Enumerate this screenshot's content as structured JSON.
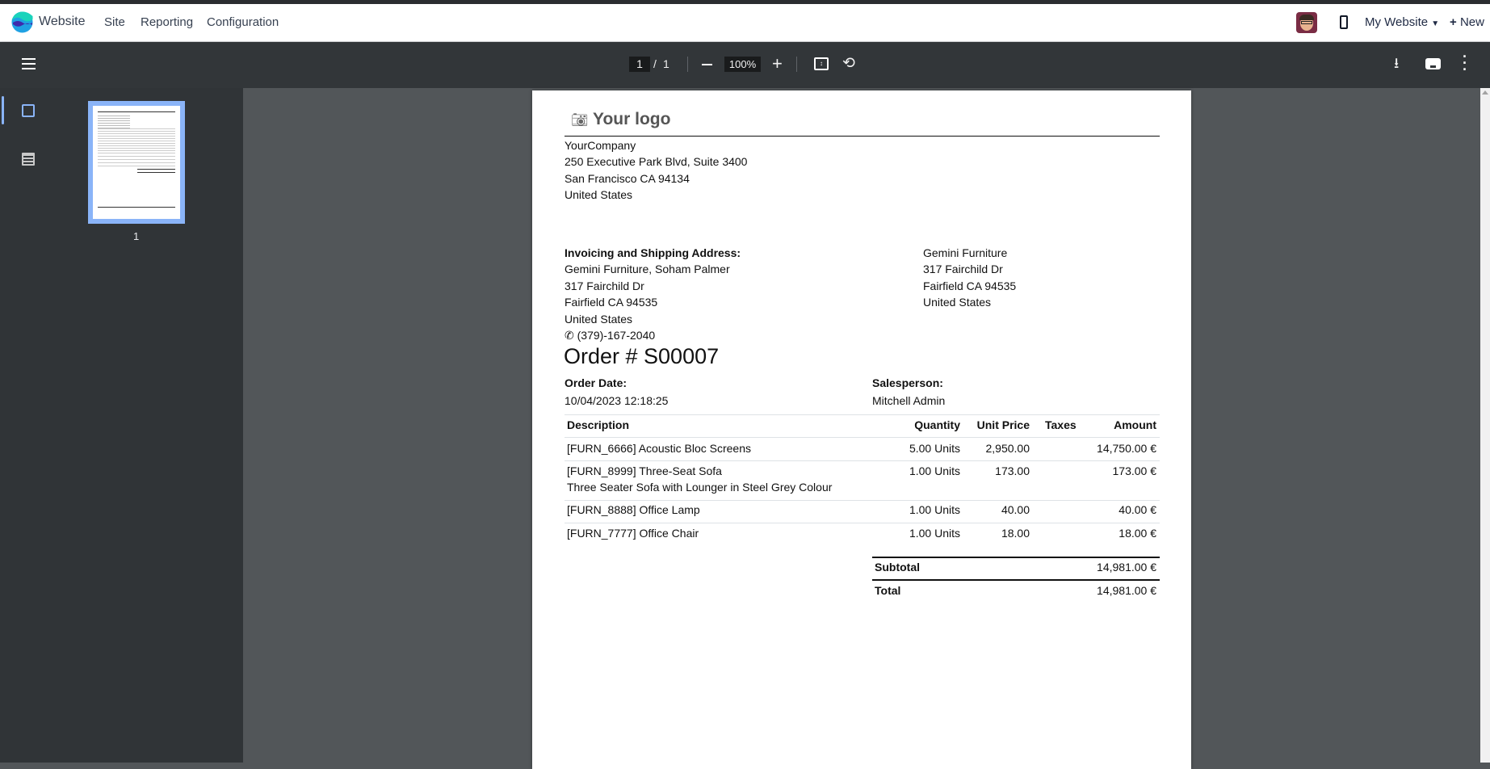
{
  "navbar": {
    "app_name": "Website",
    "menu": [
      "Site",
      "Reporting",
      "Configuration"
    ],
    "website_selector": "My Website",
    "new_label": "New",
    "logo_colors": [
      "#1ad3bb",
      "#3f2aab",
      "#1fa1e3"
    ]
  },
  "toolbar": {
    "current_page": "1",
    "page_separator": "/",
    "total_pages": "1",
    "zoom": "100%"
  },
  "sidebar": {
    "thumbnail_label": "1",
    "accent": "#8ab4f8"
  },
  "document": {
    "logo_text": "Your logo",
    "company": [
      "YourCompany",
      "250 Executive Park Blvd, Suite 3400",
      "San Francisco CA 94134",
      "United States"
    ],
    "invoicing_label": "Invoicing and Shipping Address:",
    "invoicing": [
      "Gemini Furniture, Soham Palmer",
      "317 Fairchild Dr",
      "Fairfield CA 94535",
      "United States"
    ],
    "phone": "(379)-167-2040",
    "partner": [
      "Gemini Furniture",
      "317 Fairchild Dr",
      "Fairfield CA 94535",
      "United States"
    ],
    "order_title": "Order # S00007",
    "order_date_label": "Order Date:",
    "order_date": "10/04/2023 12:18:25",
    "salesperson_label": "Salesperson:",
    "salesperson": "Mitchell Admin",
    "columns": [
      "Description",
      "Quantity",
      "Unit Price",
      "Taxes",
      "Amount"
    ],
    "lines": [
      {
        "description": "[FURN_6666] Acoustic Bloc Screens",
        "quantity": "5.00 Units",
        "unit_price": "2,950.00",
        "taxes": "",
        "amount": "14,750.00 €"
      },
      {
        "description": "[FURN_8999] Three-Seat Sofa",
        "note": "Three Seater Sofa with Lounger in Steel Grey Colour",
        "quantity": "1.00 Units",
        "unit_price": "173.00",
        "taxes": "",
        "amount": "173.00 €"
      },
      {
        "description": "[FURN_8888] Office Lamp",
        "quantity": "1.00 Units",
        "unit_price": "40.00",
        "taxes": "",
        "amount": "40.00 €"
      },
      {
        "description": "[FURN_7777] Office Chair",
        "quantity": "1.00 Units",
        "unit_price": "18.00",
        "taxes": "",
        "amount": "18.00 €"
      }
    ],
    "subtotal_label": "Subtotal",
    "subtotal": "14,981.00 €",
    "total_label": "Total",
    "total": "14,981.00 €"
  }
}
